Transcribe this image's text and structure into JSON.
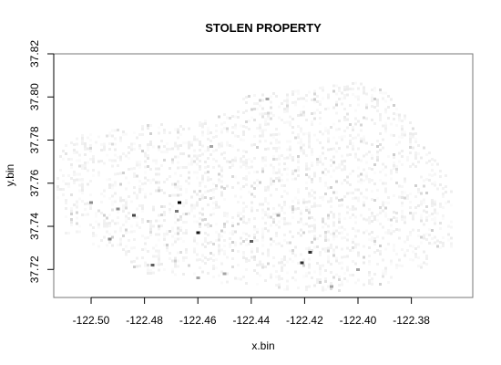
{
  "chart_data": {
    "type": "heatmap",
    "title": "STOLEN PROPERTY",
    "xlabel": "x.bin",
    "ylabel": "y.bin",
    "xlim": [
      -122.514,
      -122.357
    ],
    "ylim": [
      37.707,
      37.82
    ],
    "x_ticks": [
      -122.5,
      -122.48,
      -122.46,
      -122.44,
      -122.42,
      -122.4,
      -122.38
    ],
    "x_tick_labels": [
      "-122.50",
      "-122.48",
      "-122.46",
      "-122.44",
      "-122.42",
      "-122.40",
      "-122.38"
    ],
    "y_ticks": [
      37.72,
      37.74,
      37.76,
      37.78,
      37.8,
      37.82
    ],
    "y_tick_labels": [
      "37.72",
      "37.74",
      "37.76",
      "37.78",
      "37.80",
      "37.82"
    ],
    "bin_size": 0.0015,
    "count_scale": "white (low) to black (high)",
    "max_count": 10,
    "hotspots": [
      {
        "x": -122.467,
        "y": 37.751,
        "count": 10
      },
      {
        "x": -122.46,
        "y": 37.737,
        "count": 9
      },
      {
        "x": -122.421,
        "y": 37.723,
        "count": 8
      },
      {
        "x": -122.418,
        "y": 37.728,
        "count": 8
      },
      {
        "x": -122.484,
        "y": 37.745,
        "count": 7
      },
      {
        "x": -122.477,
        "y": 37.722,
        "count": 6
      },
      {
        "x": -122.44,
        "y": 37.733,
        "count": 6
      },
      {
        "x": -122.468,
        "y": 37.747,
        "count": 5
      },
      {
        "x": -122.5,
        "y": 37.751,
        "count": 4
      },
      {
        "x": -122.493,
        "y": 37.734,
        "count": 4
      },
      {
        "x": -122.49,
        "y": 37.748,
        "count": 4
      },
      {
        "x": -122.455,
        "y": 37.777,
        "count": 3
      },
      {
        "x": -122.434,
        "y": 37.799,
        "count": 3
      },
      {
        "x": -122.46,
        "y": 37.716,
        "count": 3
      },
      {
        "x": -122.4,
        "y": 37.72,
        "count": 3
      },
      {
        "x": -122.45,
        "y": 37.718,
        "count": 3
      },
      {
        "x": -122.43,
        "y": 37.745,
        "count": 3
      },
      {
        "x": -122.41,
        "y": 37.712,
        "count": 3
      }
    ],
    "background_density": "sparse light-grey counts (1–2) across the San Francisco city footprint"
  }
}
